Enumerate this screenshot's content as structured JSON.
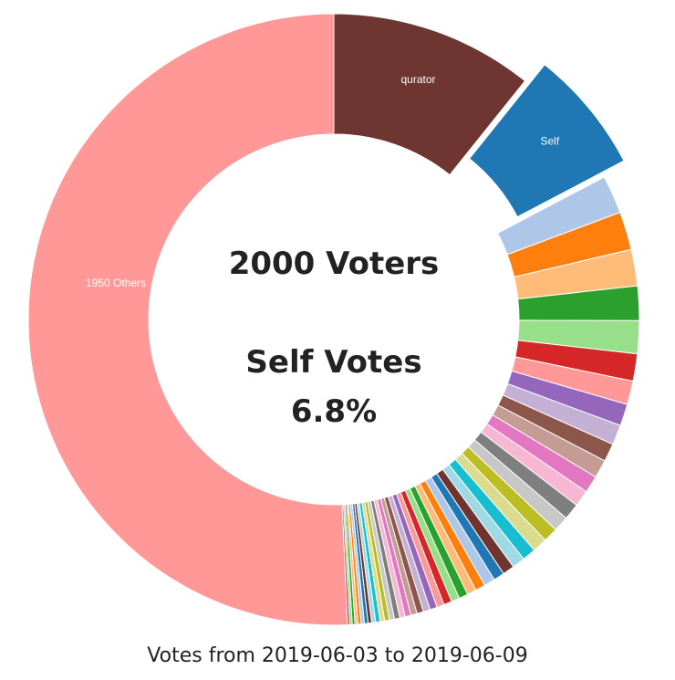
{
  "chart_data": {
    "type": "donut",
    "center": {
      "voters": "2000 Voters",
      "self_label": "Self Votes",
      "self_percent": "6.8%"
    },
    "footer": "Votes from 2019-06-03 to 2019-06-09",
    "labelled_slices": [
      {
        "name": "qurator",
        "value": 11.2
      },
      {
        "name": "Self",
        "value": 6.8
      },
      {
        "name": "1950 Others",
        "value": 52.8
      }
    ],
    "slices": [
      {
        "label": "qurator",
        "value": 11.2,
        "color": "#6f3531"
      },
      {
        "label": "Self",
        "value": 6.8,
        "color": "#1f77b4",
        "exploded": true
      },
      {
        "value": 2.1,
        "color": "#aec7e8"
      },
      {
        "value": 2.1,
        "color": "#ff7f0e"
      },
      {
        "value": 2.0,
        "color": "#ffbb78"
      },
      {
        "value": 1.9,
        "color": "#2ca02c"
      },
      {
        "value": 1.8,
        "color": "#98df8a"
      },
      {
        "value": 1.5,
        "color": "#d62728"
      },
      {
        "value": 1.3,
        "color": "#ff9896"
      },
      {
        "value": 1.2,
        "color": "#9467bd"
      },
      {
        "value": 1.1,
        "color": "#c5b0d5"
      },
      {
        "value": 1.0,
        "color": "#8c564b"
      },
      {
        "value": 1.0,
        "color": "#c49c94"
      },
      {
        "value": 0.95,
        "color": "#e377c2"
      },
      {
        "value": 0.9,
        "color": "#f7b6d2"
      },
      {
        "value": 0.9,
        "color": "#7f7f7f"
      },
      {
        "value": 0.85,
        "color": "#c7c7c7"
      },
      {
        "value": 0.8,
        "color": "#bcbd22"
      },
      {
        "value": 0.8,
        "color": "#dbdb8d"
      },
      {
        "value": 0.75,
        "color": "#17becf"
      },
      {
        "value": 0.7,
        "color": "#9edae5"
      },
      {
        "value": 0.65,
        "color": "#6f3531"
      },
      {
        "value": 0.6,
        "color": "#1f77b4"
      },
      {
        "value": 0.6,
        "color": "#aec7e8"
      },
      {
        "value": 0.55,
        "color": "#ff7f0e"
      },
      {
        "value": 0.5,
        "color": "#ffbb78"
      },
      {
        "value": 0.5,
        "color": "#2ca02c"
      },
      {
        "value": 0.45,
        "color": "#98df8a"
      },
      {
        "value": 0.45,
        "color": "#d62728"
      },
      {
        "value": 0.4,
        "color": "#ff9896"
      },
      {
        "value": 0.4,
        "color": "#9467bd"
      },
      {
        "value": 0.38,
        "color": "#c5b0d5"
      },
      {
        "value": 0.36,
        "color": "#8c564b"
      },
      {
        "value": 0.34,
        "color": "#c49c94"
      },
      {
        "value": 0.32,
        "color": "#e377c2"
      },
      {
        "value": 0.3,
        "color": "#f7b6d2"
      },
      {
        "value": 0.3,
        "color": "#7f7f7f"
      },
      {
        "value": 0.28,
        "color": "#c7c7c7"
      },
      {
        "value": 0.26,
        "color": "#bcbd22"
      },
      {
        "value": 0.25,
        "color": "#dbdb8d"
      },
      {
        "value": 0.24,
        "color": "#17becf"
      },
      {
        "value": 0.22,
        "color": "#9edae5"
      },
      {
        "value": 0.2,
        "color": "#6f3531"
      },
      {
        "value": 0.2,
        "color": "#1f77b4"
      },
      {
        "value": 0.18,
        "color": "#aec7e8"
      },
      {
        "value": 0.17,
        "color": "#ff7f0e"
      },
      {
        "value": 0.16,
        "color": "#ffbb78"
      },
      {
        "value": 0.15,
        "color": "#2ca02c"
      },
      {
        "value": 0.14,
        "color": "#98df8a"
      },
      {
        "value": 0.12,
        "color": "#d62728"
      },
      {
        "label": "1950 Others",
        "value": 52.8,
        "color": "#ff9896"
      }
    ]
  }
}
